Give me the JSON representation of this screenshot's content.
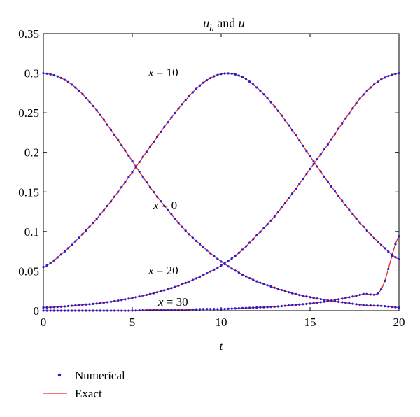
{
  "chart_data": {
    "type": "line",
    "title": {
      "var1": "u",
      "sub": "h",
      "conj": " and ",
      "var2": "u"
    },
    "xlabel": "t",
    "ylabel": "",
    "xlim": [
      0,
      20
    ],
    "ylim": [
      0,
      0.35
    ],
    "xticks": [
      "0",
      "5",
      "10",
      "15",
      "20"
    ],
    "yticks": [
      "0",
      "0.05",
      "0.1",
      "0.15",
      "0.2",
      "0.25",
      "0.3",
      "0.35"
    ],
    "x": [
      0,
      1,
      2,
      3,
      4,
      5,
      6,
      7,
      8,
      9,
      10,
      11,
      12,
      13,
      14,
      15,
      16,
      17,
      18,
      19,
      20
    ],
    "series": [
      {
        "curve": "x = 0",
        "values": [
          0.3,
          0.294,
          0.278,
          0.253,
          0.222,
          0.189,
          0.156,
          0.127,
          0.101,
          0.08,
          0.062,
          0.048,
          0.037,
          0.029,
          0.022,
          0.017,
          0.013,
          0.01,
          0.007,
          0.006,
          0.004
        ]
      },
      {
        "curve": "x = 10",
        "values": [
          0.055,
          0.071,
          0.092,
          0.116,
          0.144,
          0.175,
          0.207,
          0.238,
          0.266,
          0.288,
          0.299,
          0.297,
          0.282,
          0.258,
          0.228,
          0.195,
          0.163,
          0.133,
          0.106,
          0.083,
          0.065
        ]
      },
      {
        "curve": "x = 20",
        "values": [
          0.004,
          0.005,
          0.007,
          0.009,
          0.012,
          0.016,
          0.021,
          0.027,
          0.035,
          0.045,
          0.057,
          0.073,
          0.095,
          0.119,
          0.148,
          0.179,
          0.21,
          0.243,
          0.273,
          0.292,
          0.3
        ]
      },
      {
        "curve": "x = 30",
        "values": [
          0.0,
          0.0,
          0.0,
          0.0,
          0.0,
          0.0,
          0.001,
          0.001,
          0.001,
          0.002,
          0.002,
          0.003,
          0.004,
          0.005,
          0.007,
          0.009,
          0.012,
          0.016,
          0.021,
          0.027,
          0.094
        ]
      }
    ],
    "curve_labels": [
      "x = 10",
      "x = 0",
      "x = 20",
      "x = 30"
    ],
    "legend": {
      "placement": "below-left",
      "entries": [
        {
          "label": "Numerical",
          "style": "dots",
          "color": "#1f1fd6"
        },
        {
          "label": "Exact",
          "style": "line",
          "color": "#e8262a"
        }
      ]
    },
    "grid": false
  }
}
